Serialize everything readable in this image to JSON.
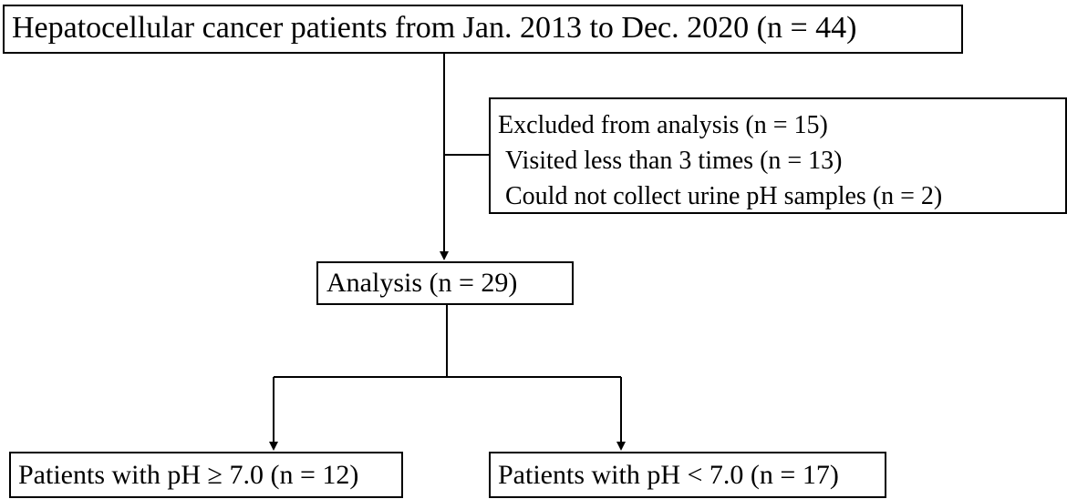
{
  "nodes": {
    "top": "Hepatocellular  cancer patients  from Jan. 2013 to Dec. 2020 (n = 44)",
    "excluded": {
      "title": "Excluded from analysis  (n = 15)",
      "reason1": "Visited less than 3 times (n = 13)",
      "reason2": "Could not collect urine pH samples  (n = 2)"
    },
    "analysis": "Analysis  (n = 29)",
    "group_high": "Patients with pH ≥ 7.0 (n = 12)",
    "group_low": "Patients with pH < 7.0 (n = 17)"
  },
  "colors": {
    "line": "#000000",
    "box_border": "#000000",
    "background": "#ffffff"
  }
}
